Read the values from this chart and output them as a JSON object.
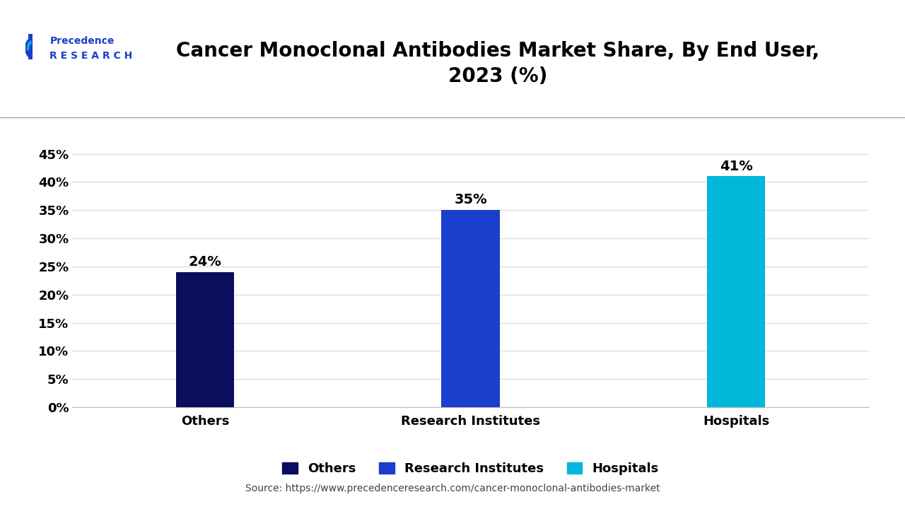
{
  "title": "Cancer Monoclonal Antibodies Market Share, By End User,\n2023 (%)",
  "categories": [
    "Others",
    "Research Institutes",
    "Hospitals"
  ],
  "values": [
    24,
    35,
    41
  ],
  "bar_colors": [
    "#0a0e5c",
    "#1a3fcc",
    "#00b8d9"
  ],
  "labels": [
    "24%",
    "35%",
    "41%"
  ],
  "yticks": [
    0,
    5,
    10,
    15,
    20,
    25,
    30,
    35,
    40,
    45
  ],
  "ylim": [
    0,
    47
  ],
  "legend_labels": [
    "Others",
    "Research Institutes",
    "Hospitals"
  ],
  "legend_colors": [
    "#0a0e5c",
    "#1a3fcc",
    "#00b8d9"
  ],
  "source_text": "Source: https://www.precedenceresearch.com/cancer-monoclonal-antibodies-market",
  "bg_color": "#ffffff",
  "plot_bg_color": "#ffffff",
  "title_fontsize": 20,
  "tick_fontsize": 13,
  "label_fontsize": 14,
  "source_fontsize": 10,
  "legend_fontsize": 13,
  "bar_width": 0.22
}
